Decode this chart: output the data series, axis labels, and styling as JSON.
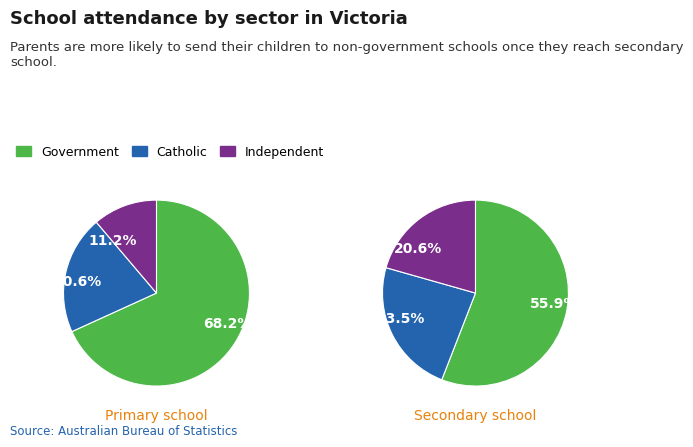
{
  "title": "School attendance by sector in Victoria",
  "subtitle": "Parents are more likely to send their children to non-government schools once they reach secondary\nschool.",
  "source": "Source: Australian Bureau of Statistics",
  "legend_labels": [
    "Government",
    "Catholic",
    "Independent"
  ],
  "colors": [
    "#4db848",
    "#2464ae",
    "#7b2d8b"
  ],
  "primary": {
    "values": [
      68.2,
      20.6,
      11.2
    ],
    "labels": [
      "68.2%",
      "20.6%",
      "11.2%"
    ],
    "title": "Primary school",
    "startangle": 90
  },
  "secondary": {
    "values": [
      55.9,
      23.5,
      20.6
    ],
    "labels": [
      "55.9%",
      "23.5%",
      "20.6%"
    ],
    "title": "Secondary school",
    "startangle": 90
  },
  "title_color": "#1a1a1a",
  "subtitle_color": "#333333",
  "label_color": "#ffffff",
  "axis_title_color": "#e8820c",
  "source_color": "#2464ae",
  "background_color": "#ffffff",
  "title_fontsize": 13,
  "subtitle_fontsize": 9.5,
  "label_fontsize": 10,
  "axis_title_fontsize": 10,
  "legend_fontsize": 9,
  "source_fontsize": 8.5
}
